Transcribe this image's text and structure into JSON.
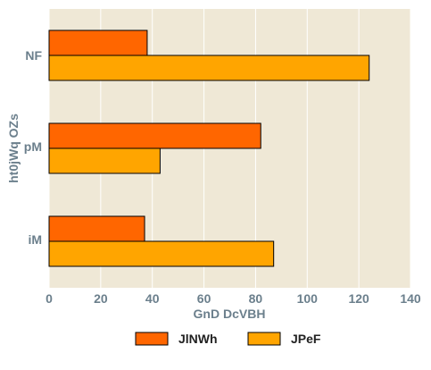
{
  "chart_data": {
    "type": "bar",
    "orientation": "horizontal",
    "categories": [
      "NF",
      "pM",
      "iM"
    ],
    "category_label_sizes": [
      "large",
      "small",
      "small"
    ],
    "series": [
      {
        "name": "JlNWh",
        "values": [
          38,
          82,
          37
        ],
        "color": "#ff6600"
      },
      {
        "name": "JPeF",
        "values": [
          124,
          43,
          87
        ],
        "color": "#ffa500"
      }
    ],
    "xlabel": "GnD DcVBH",
    "ylabel": "ht0jWq OZs",
    "xlim": [
      0,
      140
    ],
    "xticks": [
      0,
      20,
      40,
      60,
      80,
      100,
      120,
      140
    ],
    "grid": true,
    "legend_position": "bottom",
    "colors": {
      "plot_background": "#efe8d6",
      "grid": "#ffffff",
      "text": "#6b7f8c"
    }
  }
}
